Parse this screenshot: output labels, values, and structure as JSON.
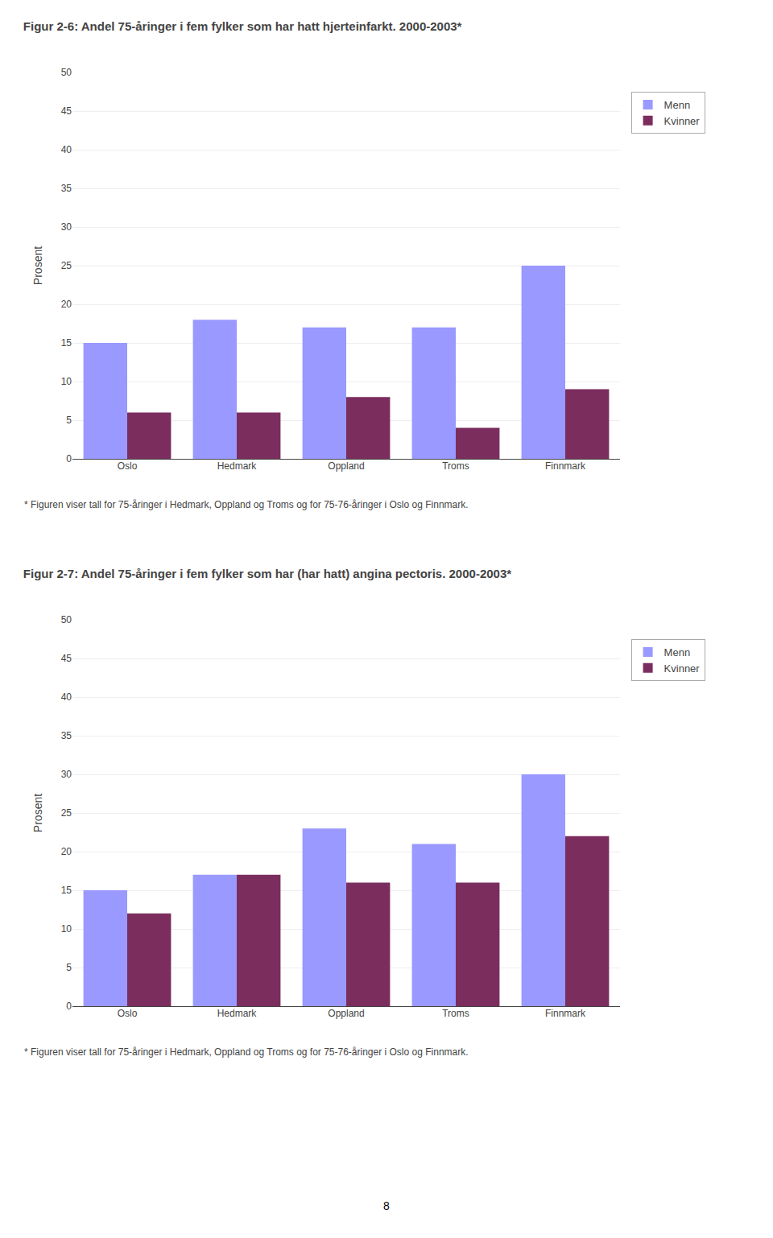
{
  "chart_data": [
    {
      "type": "bar",
      "title": "Figur 2-6: Andel 75-åringer i fem fylker som har hatt hjerteinfarkt. 2000-2003*",
      "categories": [
        "Oslo",
        "Hedmark",
        "Oppland",
        "Troms",
        "Finnmark"
      ],
      "series": [
        {
          "name": "Menn",
          "color": "#9999ff",
          "values": [
            15,
            18,
            17,
            17,
            25
          ]
        },
        {
          "name": "Kvinner",
          "color": "#7b2d5e",
          "values": [
            6,
            6,
            8,
            4,
            9
          ]
        }
      ],
      "ylabel": "Prosent",
      "ylim": [
        0,
        50
      ],
      "yticks": [
        0,
        5,
        10,
        15,
        20,
        25,
        30,
        35,
        40,
        45,
        50
      ],
      "grid": true,
      "legend": "right",
      "annotations": [
        "* Figuren viser tall for 75-åringer i Hedmark, Oppland og Troms og for 75-76-åringer i Oslo og Finnmark."
      ]
    },
    {
      "type": "bar",
      "title": "Figur 2-7: Andel 75-åringer i fem fylker som har (har hatt) angina pectoris. 2000-2003*",
      "categories": [
        "Oslo",
        "Hedmark",
        "Oppland",
        "Troms",
        "Finnmark"
      ],
      "series": [
        {
          "name": "Menn",
          "color": "#9999ff",
          "values": [
            15,
            17,
            23,
            21,
            30
          ]
        },
        {
          "name": "Kvinner",
          "color": "#7b2d5e",
          "values": [
            12,
            17,
            16,
            16,
            22
          ]
        }
      ],
      "ylabel": "Prosent",
      "ylim": [
        0,
        50
      ],
      "yticks": [
        0,
        5,
        10,
        15,
        20,
        25,
        30,
        35,
        40,
        45,
        50
      ],
      "grid": true,
      "legend": "right",
      "annotations": [
        "* Figuren viser tall for 75-åringer i Hedmark, Oppland og Troms og for 75-76-åringer i Oslo og Finnmark."
      ]
    }
  ],
  "page_number": "8"
}
